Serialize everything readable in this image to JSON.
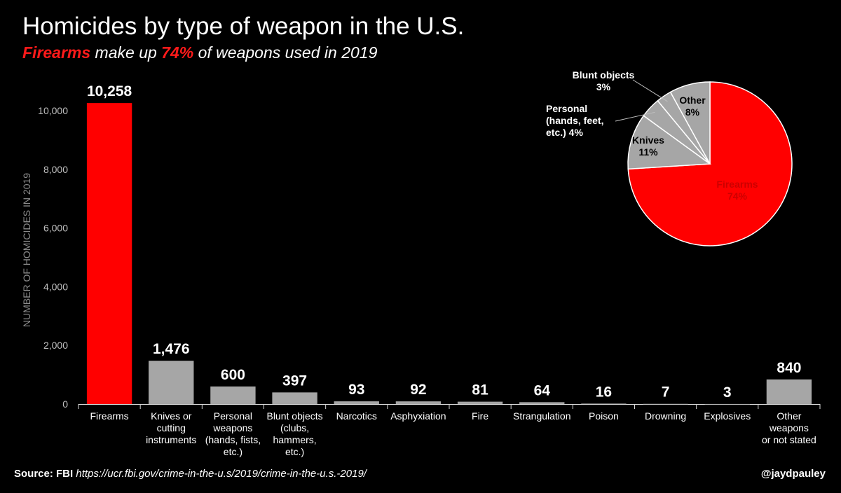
{
  "title": "Homicides by type of weapon in the U.S.",
  "subtitle": {
    "part1": "Firearms",
    "part2": " make up ",
    "part3": "74%",
    "part4": " of weapons used in 2019"
  },
  "source": {
    "label": "Source: FBI",
    "url": "https://ucr.fbi.gov/crime-in-the-u.s/2019/crime-in-the-u.s.-2019/"
  },
  "credit": "@jaydpauley",
  "colors": {
    "highlight": "#ff0000",
    "bar": "#a6a6a6",
    "background": "#000000",
    "text": "#ffffff",
    "axis_text": "#bfbfbf"
  },
  "chart_data": [
    {
      "type": "bar",
      "ylabel": "NUMBER OF HOMICIDES IN 2019",
      "ylim": [
        0,
        10500
      ],
      "yticks": [
        0,
        2000,
        4000,
        6000,
        8000,
        10000
      ],
      "ytick_labels": [
        "0",
        "2,000",
        "4,000",
        "6,000",
        "8,000",
        "10,000"
      ],
      "grid": false,
      "categories": [
        [
          "Firearms"
        ],
        [
          "Knives or",
          "cutting",
          "instruments"
        ],
        [
          "Personal",
          "weapons",
          "(hands, fists,",
          "etc.)"
        ],
        [
          "Blunt objects",
          "(clubs,",
          "hammers,",
          "etc.)"
        ],
        [
          "Narcotics"
        ],
        [
          "Asphyxiation"
        ],
        [
          "Fire"
        ],
        [
          "Strangulation"
        ],
        [
          "Poison"
        ],
        [
          "Drowning"
        ],
        [
          "Explosives"
        ],
        [
          "Other",
          "weapons",
          "or not stated"
        ]
      ],
      "values": [
        10258,
        1476,
        600,
        397,
        93,
        92,
        81,
        64,
        16,
        7,
        3,
        840
      ],
      "value_labels": [
        "10,258",
        "1,476",
        "600",
        "397",
        "93",
        "92",
        "81",
        "64",
        "16",
        "7",
        "3",
        "840"
      ],
      "highlight_index": 0
    },
    {
      "type": "pie",
      "slices": [
        {
          "label_lines": [
            "Firearms",
            "74%"
          ],
          "value": 74,
          "color": "#ff0000",
          "label_color": "#cc0000"
        },
        {
          "label_lines": [
            "Knives",
            "11%"
          ],
          "value": 11,
          "color": "#a6a6a6",
          "label_color": "#000000"
        },
        {
          "label_lines": [
            "Personal",
            "(hands, feet,",
            "etc.) 4%"
          ],
          "value": 4,
          "color": "#a6a6a6",
          "label_color": "#ffffff"
        },
        {
          "label_lines": [
            "Blunt objects",
            "3%"
          ],
          "value": 3,
          "color": "#a6a6a6",
          "label_color": "#ffffff"
        },
        {
          "label_lines": [
            "Other",
            "8%"
          ],
          "value": 8,
          "color": "#a6a6a6",
          "label_color": "#000000"
        }
      ]
    }
  ]
}
